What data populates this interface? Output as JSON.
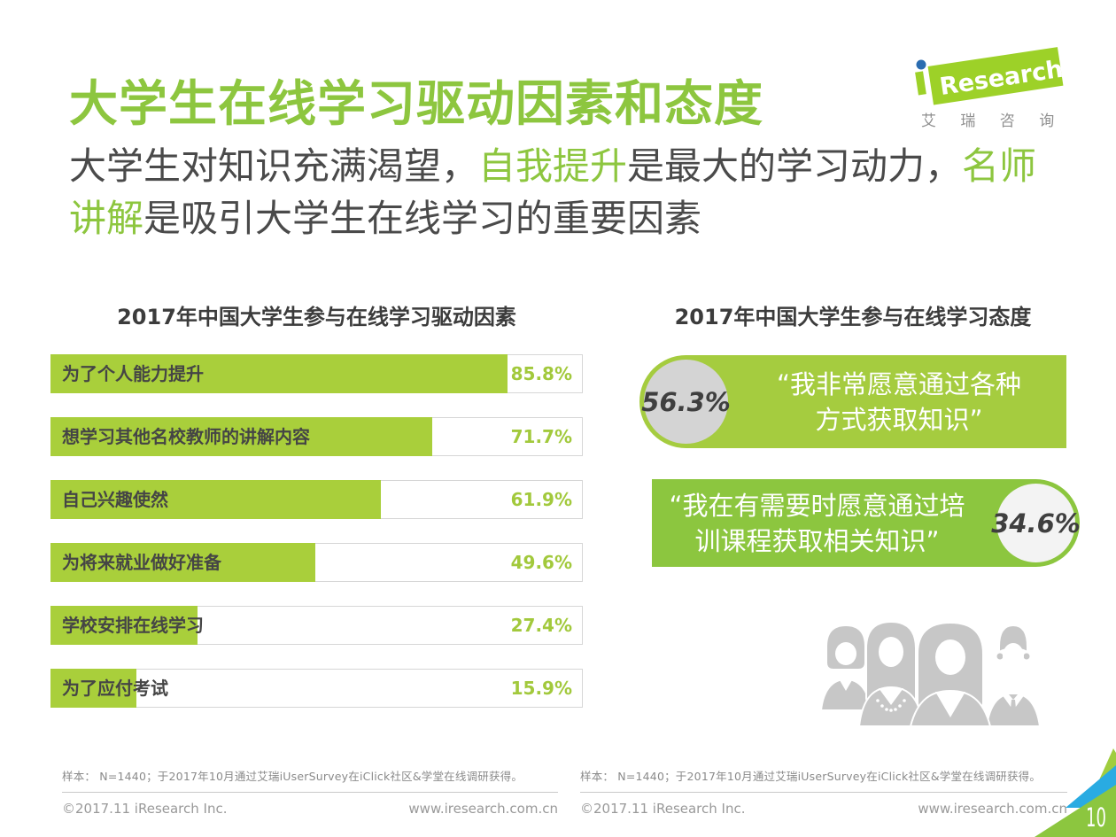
{
  "header": {
    "title": "大学生在线学习驱动因素和态度",
    "subtitle_lines": [
      [
        {
          "text": "大学生对知识充满渴望，",
          "green": false
        },
        {
          "text": "自我提升",
          "green": true
        },
        {
          "text": "是最大的学习动力，",
          "green": false
        },
        {
          "text": "名师",
          "green": true
        }
      ],
      [
        {
          "text": "讲解",
          "green": true
        },
        {
          "text": "是吸引大学生在线学习的重要因素",
          "green": false
        }
      ]
    ]
  },
  "logo": {
    "brand_i": "i",
    "brand": "Research",
    "cn": "艾 瑞 咨 询"
  },
  "chart_data": [
    {
      "type": "bar",
      "title": "2017年中国大学生参与在线学习驱动因素",
      "orientation": "horizontal",
      "categories": [
        "为了个人能力提升",
        "想学习其他名校教师的讲解内容",
        "自己兴趣使然",
        "为将来就业做好准备",
        "学校安排在线学习",
        "为了应付考试"
      ],
      "values": [
        85.8,
        71.7,
        61.9,
        49.6,
        27.4,
        15.9
      ],
      "value_labels": [
        "85.8%",
        "71.7%",
        "61.9%",
        "49.6%",
        "27.4%",
        "15.9%"
      ],
      "xlim": [
        0,
        100
      ],
      "unit": "%"
    },
    {
      "type": "kpi",
      "title": "2017年中国大学生参与在线学习态度",
      "items": [
        {
          "value": 56.3,
          "label": "56.3%",
          "quote_line1": "“我非常愿意通过各种",
          "quote_line2": "方式获取知识”"
        },
        {
          "value": 34.6,
          "label": "34.6%",
          "quote_line1": "“我在有需要时愿意通过培",
          "quote_line2": "训课程获取相关知识”"
        }
      ]
    }
  ],
  "footers": {
    "left": {
      "sample": "样本： N=1440；于2017年10月通过艾瑞iUserSurvey在iClick社区&学堂在线调研获得。",
      "copyright": "©2017.11 iResearch Inc.",
      "site": "www.iresearch.com.cn"
    },
    "right": {
      "sample": "样本： N=1440；于2017年10月通过艾瑞iUserSurvey在iClick社区&学堂在线调研获得。",
      "copyright": "©2017.11 iResearch Inc.",
      "site": "www.iresearch.com.cn"
    }
  },
  "page_number": "10",
  "colors": {
    "title_green": "#8dc63f",
    "bar_fill": "#a9cf3b",
    "pct_text": "#a2c93c",
    "box1_green": "#a5cc3f",
    "box2_green": "#8cc63f",
    "circle_gray": "#d4d4d4",
    "circle_white": "#f3f3f3",
    "corner_blue": "#29abe2",
    "corner_green": "#9acb3c",
    "logo_green": "#9dd128",
    "logo_dot_blue": "#2a6cb0",
    "people_gray": "#c7c7c7"
  }
}
